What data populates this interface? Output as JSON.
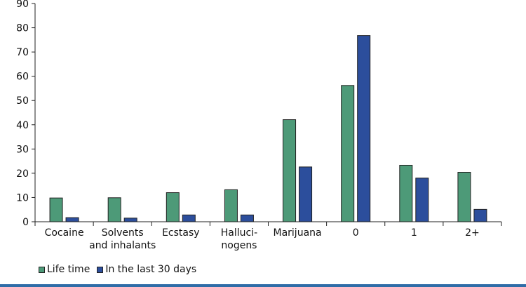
{
  "chart_data": {
    "type": "bar",
    "categories": [
      [
        "Cocaine"
      ],
      [
        "Solvents",
        "and inhalants"
      ],
      [
        "Ecstasy"
      ],
      [
        "Halluci-",
        "nogens"
      ],
      [
        "Marijuana"
      ],
      [
        "0"
      ],
      [
        "1"
      ],
      [
        "2+"
      ]
    ],
    "series": [
      {
        "name": "Life time",
        "color": "#4d9a78",
        "values": [
          9.8,
          9.9,
          12.0,
          13.2,
          42.1,
          56.2,
          23.3,
          20.4
        ]
      },
      {
        "name": "In the last 30 days",
        "color": "#2c4e9c",
        "values": [
          1.7,
          1.5,
          2.8,
          2.8,
          22.6,
          76.8,
          18.0,
          5.1
        ]
      }
    ],
    "yticks": [
      0,
      10,
      20,
      30,
      40,
      50,
      60,
      70,
      80,
      90
    ],
    "ylim": [
      0,
      90
    ],
    "grid": false,
    "legend_position": "bottom-left"
  }
}
